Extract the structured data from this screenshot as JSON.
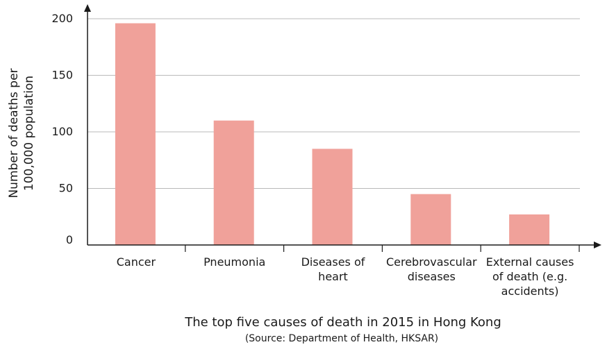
{
  "chart_data": {
    "type": "bar",
    "categories": [
      [
        "Cancer"
      ],
      [
        "Pneumonia"
      ],
      [
        "Diseases of",
        "heart"
      ],
      [
        "Cerebrovascular",
        "diseases"
      ],
      [
        "External causes",
        "of death (e.g.",
        "accidents)"
      ]
    ],
    "values": [
      196,
      110,
      85,
      45,
      27
    ],
    "ylim": [
      0,
      200
    ],
    "yticks": [
      0,
      50,
      100,
      150,
      200
    ],
    "ylabel": [
      "Number of deaths per",
      "100,000 population"
    ],
    "xlabel": "The top five causes of death in 2015 in Hong Kong",
    "source": "(Source: Department of Health, HKSAR)",
    "grid": true,
    "legend": "none",
    "colors": {
      "bar": "#f0a19a",
      "grid": "#b9b9b9",
      "axis": "#1a1a1a"
    }
  }
}
